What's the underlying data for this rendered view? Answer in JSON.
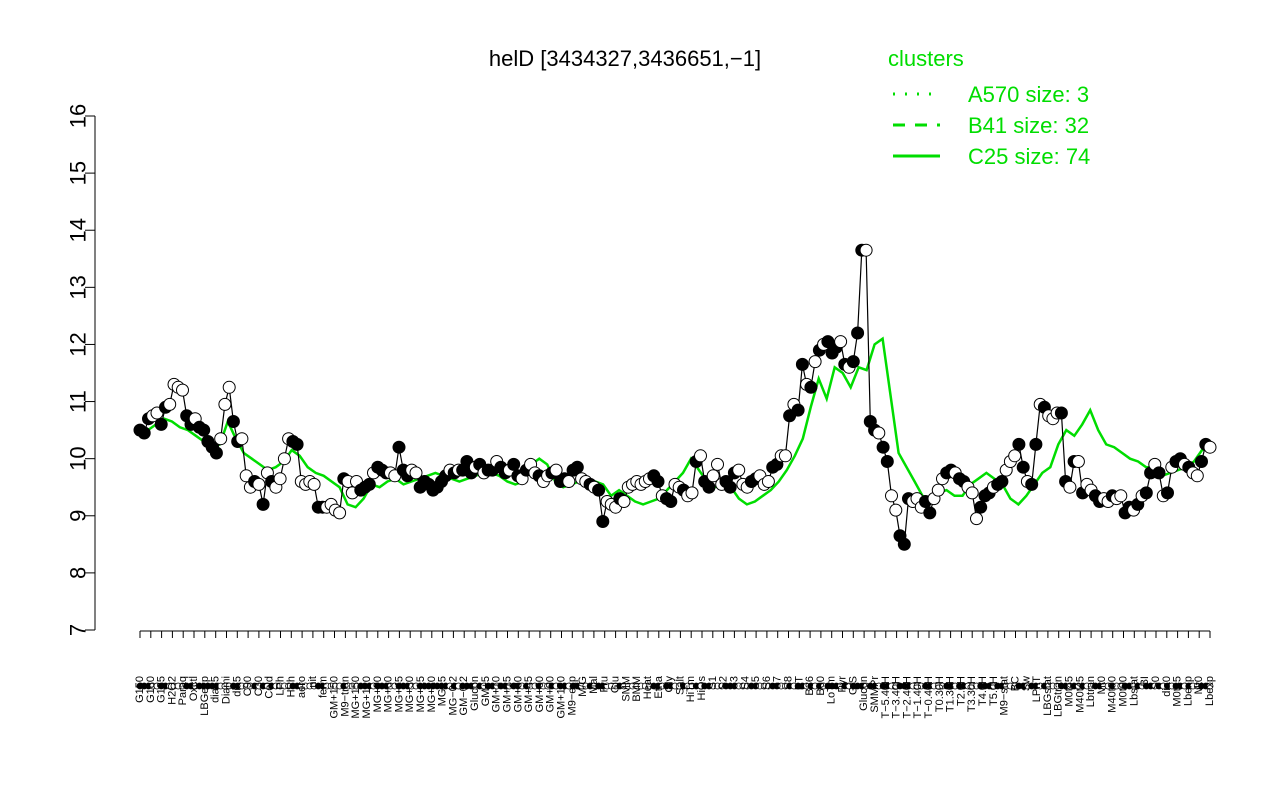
{
  "chart_data": {
    "type": "line",
    "title": "helD [3434327,3436651,−1]",
    "xlabel": "",
    "ylabel": "",
    "ylim": [
      7,
      16
    ],
    "yticks": [
      7,
      8,
      9,
      10,
      11,
      12,
      13,
      14,
      15,
      16
    ],
    "x_labels": [
      "G150",
      "G180",
      "G135",
      "H2O2",
      "Paraq",
      "Oxctl",
      "LBGexp",
      "dia15",
      "Diami",
      "dia5",
      "C90",
      "C30",
      "Cold",
      "LPh",
      "HPh",
      "aero",
      "nit",
      "ferm",
      "GM+150",
      "M9−tran",
      "MG+150",
      "MG+120",
      "MG+90",
      "MG+60",
      "MG+45",
      "MG+30",
      "MG+15",
      "MG+10",
      "MG+5",
      "MG−0.2",
      "GM−0.2",
      "Glucon",
      "GM+5",
      "GM+10",
      "GM+15",
      "GM+30",
      "GM+45",
      "GM+60",
      "GM+90",
      "GM+120",
      "M9−exp",
      "M/G",
      "Mal",
      "Fru",
      "Glu",
      "SMM",
      "BMM",
      "Heat",
      "Etha",
      "Gly",
      "Salt",
      "HiTm",
      "HiOs",
      "S1",
      "S2",
      "S3",
      "S4",
      "S5",
      "S6",
      "S7",
      "S8",
      "BT",
      "B36",
      "B60",
      "LoTm",
      "Pyr",
      "G/S",
      "Glucon",
      "SMMPr",
      "T−5.40H",
      "T−3.40H",
      "T−2.40H",
      "T−1.40H",
      "T−0.40H",
      "T0.30H",
      "T1.30H",
      "T2.0H",
      "T3.30H",
      "T4.0H",
      "T5.0H",
      "M9−stat",
      "BC",
      "Sw",
      "LPhT",
      "LBGstat",
      "LBGtran",
      "M0t45",
      "M40t45",
      "Lbtran",
      "Mt0",
      "M40t90",
      "M0t90",
      "Lbstat",
      "BI",
      "S0",
      "dia0",
      "M0t45",
      "Lbexp",
      "Mt0",
      "Lbexp"
    ],
    "colors": {
      "series": "#000000",
      "cluster": "#00dd00",
      "filled_point": "#000000",
      "open_point": "#ffffff"
    },
    "series": [
      {
        "values": [
          10.5,
          10.45,
          10.7,
          10.75,
          10.8,
          10.6,
          10.9,
          10.95,
          11.3,
          11.25,
          11.2,
          10.75,
          10.6,
          10.7,
          10.55,
          10.5,
          10.3,
          10.2,
          10.1,
          10.35,
          10.95,
          11.25,
          10.65,
          10.3,
          10.35,
          9.7,
          9.5,
          9.6,
          9.55,
          9.2,
          9.75,
          9.6,
          9.5,
          9.65,
          10.0,
          10.35,
          10.3,
          10.25,
          9.6,
          9.55,
          9.6,
          9.55,
          9.15,
          9.15,
          9.15,
          9.2,
          9.1,
          9.05,
          9.65,
          9.6,
          9.4,
          9.6,
          9.45,
          9.5,
          9.55,
          9.75,
          9.85,
          9.8,
          9.75,
          9.75,
          9.7,
          10.2,
          9.8,
          9.7,
          9.8,
          9.75,
          9.5,
          9.6,
          9.55,
          9.45,
          9.5,
          9.6,
          9.7,
          9.8,
          9.75,
          9.8,
          9.8,
          9.95,
          9.75,
          9.85,
          9.9,
          9.75,
          9.8,
          9.8,
          9.95,
          9.85,
          9.75,
          9.8,
          9.9,
          9.7,
          9.65,
          9.8,
          9.9,
          9.75,
          9.7,
          9.6,
          9.7,
          9.75,
          9.8,
          9.6,
          9.65,
          9.6,
          9.8,
          9.85,
          9.65,
          9.6,
          9.55,
          9.5,
          9.45,
          8.9,
          9.25,
          9.2,
          9.15,
          9.3,
          9.25,
          9.5,
          9.55,
          9.6,
          9.55,
          9.6,
          9.65,
          9.7,
          9.6,
          9.35,
          9.3,
          9.25,
          9.55,
          9.5,
          9.45,
          9.35,
          9.4,
          9.95,
          10.05,
          9.6,
          9.5,
          9.7,
          9.9,
          9.55,
          9.6,
          9.5,
          9.75,
          9.8,
          9.55,
          9.5,
          9.6,
          9.65,
          9.7,
          9.55,
          9.6,
          9.85,
          9.9,
          10.05,
          10.05,
          10.75,
          10.95,
          10.85,
          11.65,
          11.3,
          11.25,
          11.7,
          11.9,
          12.0,
          12.05,
          11.85,
          11.95,
          12.05,
          11.65,
          11.6,
          11.7,
          12.2,
          13.65,
          13.65,
          10.65,
          10.5,
          10.45,
          10.2,
          9.95,
          9.35,
          9.1,
          8.65,
          8.5,
          9.3,
          9.25,
          9.3,
          9.15,
          9.25,
          9.05,
          9.3,
          9.45,
          9.65,
          9.75,
          9.8,
          9.75,
          9.65,
          9.6,
          9.5,
          9.4,
          8.95,
          9.15,
          9.35,
          9.4,
          9.5,
          9.55,
          9.6,
          9.8,
          9.95,
          10.05,
          10.25,
          9.85,
          9.6,
          9.55,
          10.25,
          10.95,
          10.9,
          10.75,
          10.7,
          10.8,
          10.8,
          9.6,
          9.5,
          9.95,
          9.95,
          9.4,
          9.55,
          9.45,
          9.35,
          9.25,
          9.3,
          9.25,
          9.35,
          9.3,
          9.35,
          9.05,
          9.15,
          9.1,
          9.2,
          9.35,
          9.4,
          9.75,
          9.9,
          9.75,
          9.35,
          9.4,
          9.85,
          9.95,
          10.0,
          9.9,
          9.85,
          9.75,
          9.7,
          9.95,
          10.25,
          10.2
        ],
        "filled": [
          1,
          1,
          1,
          0,
          0,
          1,
          1,
          0,
          0,
          0,
          0,
          1,
          1,
          0,
          1,
          1,
          1,
          1,
          1,
          0,
          0,
          0,
          1,
          1,
          0,
          0,
          0,
          1,
          0,
          1,
          0,
          1,
          0,
          0,
          0,
          0,
          1,
          1,
          0,
          0,
          0,
          0,
          1,
          1,
          0,
          0,
          0,
          0,
          1,
          0,
          0,
          0,
          1,
          1,
          1,
          0,
          1,
          1,
          1,
          0,
          0,
          1,
          1,
          1,
          0,
          0,
          1,
          1,
          1,
          1,
          1,
          1,
          1,
          0,
          1,
          0,
          1,
          1,
          1,
          0,
          1,
          0,
          1,
          1,
          0,
          1,
          1,
          0,
          1,
          1,
          0,
          1,
          0,
          0,
          1,
          0,
          0,
          1,
          0,
          1,
          1,
          0,
          1,
          1,
          0,
          0,
          1,
          0,
          1,
          1,
          0,
          0,
          0,
          1,
          0,
          0,
          0,
          0,
          0,
          0,
          0,
          1,
          1,
          0,
          1,
          1,
          0,
          0,
          1,
          0,
          0,
          1,
          0,
          1,
          1,
          0,
          0,
          0,
          1,
          1,
          1,
          0,
          0,
          0,
          1,
          1,
          0,
          0,
          0,
          1,
          1,
          0,
          0,
          1,
          0,
          1,
          1,
          0,
          1,
          0,
          1,
          0,
          1,
          1,
          1,
          0,
          1,
          0,
          1,
          1,
          1,
          0,
          1,
          1,
          0,
          1,
          1,
          0,
          0,
          1,
          1,
          1,
          0,
          0,
          0,
          1,
          1,
          0,
          0,
          0,
          1,
          1,
          0,
          1,
          1,
          0,
          0,
          0,
          1,
          1,
          1,
          0,
          1,
          1,
          0,
          0,
          0,
          1,
          1,
          0,
          1,
          1,
          0,
          1,
          0,
          0,
          0,
          1,
          1,
          0,
          1,
          0,
          1,
          0,
          0,
          1,
          1,
          0,
          0,
          1,
          0,
          0,
          1,
          1,
          0,
          1,
          0,
          1,
          1,
          0,
          1,
          0,
          1,
          0,
          1,
          1,
          0,
          1,
          0,
          0,
          1,
          1,
          0,
          0,
          1,
          0,
          1
        ]
      }
    ],
    "clusters": {
      "legend_title": "clusters",
      "legend_position": "top-right",
      "entries": [
        {
          "name": "A570 size: 3",
          "style": "dotted"
        },
        {
          "name": "B41 size: 32",
          "style": "dashed"
        },
        {
          "name": "C25 size: 74",
          "style": "solid"
        }
      ],
      "C25": [
        10.55,
        10.5,
        10.6,
        10.7,
        10.65,
        10.55,
        10.5,
        10.4,
        10.3,
        10.2,
        10.25,
        10.65,
        10.35,
        10.1,
        10.0,
        9.9,
        9.8,
        9.85,
        9.95,
        10.15,
        10.05,
        9.85,
        9.75,
        9.7,
        9.6,
        9.5,
        9.2,
        9.15,
        9.3,
        9.55,
        9.5,
        9.6,
        9.65,
        9.55,
        9.6,
        9.65,
        9.7,
        9.75,
        9.7,
        9.65,
        9.6,
        9.65,
        9.7,
        9.75,
        9.75,
        9.7,
        9.6,
        9.55,
        9.6,
        9.9,
        10.0,
        9.9,
        9.6,
        9.5,
        9.55,
        9.6,
        9.55,
        9.6,
        9.55,
        9.35,
        9.45,
        9.35,
        9.25,
        9.2,
        9.25,
        9.3,
        9.45,
        9.6,
        9.75,
        10.0,
        9.8,
        9.6,
        9.5,
        9.55,
        9.5,
        9.3,
        9.2,
        9.25,
        9.35,
        9.45,
        9.6,
        9.8,
        10.05,
        10.35,
        10.9,
        11.4,
        11.05,
        11.6,
        11.5,
        11.25,
        11.6,
        11.55,
        12.0,
        12.1,
        11.1,
        10.1,
        9.85,
        9.6,
        9.35,
        9.3,
        9.4,
        9.45,
        9.35,
        9.35,
        9.55,
        9.65,
        9.75,
        9.65,
        9.55,
        9.3,
        9.2,
        9.35,
        9.55,
        9.75,
        9.85,
        10.25,
        10.5,
        10.4,
        10.6,
        10.85,
        10.5,
        10.25,
        10.2,
        10.1,
        10.0,
        9.95,
        9.85,
        9.85,
        9.7,
        9.75,
        9.8,
        9.85,
        9.95,
        10.15,
        10.2
      ]
    }
  }
}
